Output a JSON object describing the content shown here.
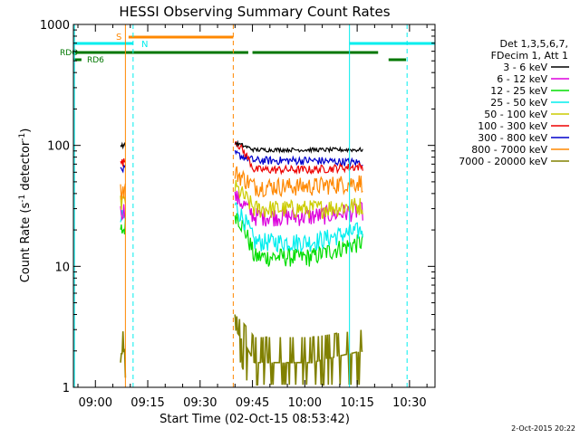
{
  "chart_data": {
    "type": "line",
    "title": "HESSI Observing Summary Count Rates",
    "xlabel": "Start Time (02-Oct-15 08:53:42)",
    "ylabel_main": "Count Rate (s",
    "ylabel_sup1": "-1",
    "ylabel_mid": " detector",
    "ylabel_sup2": "-1",
    "ylabel_end": ")",
    "yscale": "log",
    "ylim": [
      1,
      1000
    ],
    "xlim_minutes": [
      -6.3,
      97.3
    ],
    "x_tick_labels": [
      "09:00",
      "09:15",
      "09:30",
      "09:45",
      "10:00",
      "10:15",
      "10:30"
    ],
    "x_tick_minutes": [
      0,
      15,
      30,
      45,
      60,
      75,
      90
    ],
    "y_tick_labels": [
      "1",
      "10",
      "100",
      "1000"
    ],
    "y_tick_values": [
      1,
      10,
      100,
      1000
    ],
    "legend": {
      "header_lines": [
        "Det 1,3,5,6,7,",
        "FDecim 1, Att 1"
      ],
      "entries": [
        {
          "label": "3 - 6 keV",
          "color": "#000000"
        },
        {
          "label": "6 - 12 keV",
          "color": "#dd00dd"
        },
        {
          "label": "12 - 25 keV",
          "color": "#00dd00"
        },
        {
          "label": "25 - 50 keV",
          "color": "#00eeee"
        },
        {
          "label": "50 - 100 keV",
          "color": "#cccc00"
        },
        {
          "label": "100 - 300 keV",
          "color": "#ee0000"
        },
        {
          "label": "300 - 800 keV",
          "color": "#0000cc"
        },
        {
          "label": "800 - 7000 keV",
          "color": "#ff8800"
        },
        {
          "label": "7000 - 20000 keV",
          "color": "#808000"
        }
      ]
    },
    "flag_labels": {
      "saa": "S",
      "night": "N",
      "rdo": "RDO",
      "rd6": "RD6"
    },
    "saa_interval_minutes": [
      9.5,
      39.5
    ],
    "night_interval_minutes": [
      [
        -6.3,
        10.8
      ],
      [
        72.8,
        97.3
      ]
    ],
    "rdo_intervals_minutes": [
      [
        -6.3,
        43.8
      ],
      [
        45.0,
        81.0
      ]
    ],
    "rd6_intervals_minutes": [
      [
        -6.3,
        -4.0
      ],
      [
        84.0,
        89.0
      ]
    ],
    "vertical_lines_minutes": [
      {
        "x": -6.0,
        "color": "#00eeee",
        "style": "solid"
      },
      {
        "x": 8.6,
        "color": "#ff8800",
        "style": "solid"
      },
      {
        "x": 10.8,
        "color": "#00eeee",
        "style": "dashed"
      },
      {
        "x": 39.5,
        "color": "#ff8800",
        "style": "dashed"
      },
      {
        "x": 72.8,
        "color": "#00eeee",
        "style": "solid"
      },
      {
        "x": 89.3,
        "color": "#00eeee",
        "style": "dashed"
      }
    ],
    "segments": [
      {
        "start_minute": 7.2,
        "end_minute": 8.6
      },
      {
        "start_minute": 40.0,
        "end_minute": 76.6
      }
    ],
    "series": [
      {
        "name": "3 - 6 keV",
        "color": "#000000",
        "levels": [
          {
            "segment": 0,
            "start": 100,
            "end": 100
          },
          {
            "segment": 1,
            "start": 105,
            "mid": 92,
            "end": 92
          }
        ]
      },
      {
        "name": "6 - 12 keV",
        "color": "#dd00dd",
        "levels": [
          {
            "segment": 0,
            "start": 28,
            "end": 30
          },
          {
            "segment": 1,
            "start": 38,
            "mid": 26,
            "end": 29
          }
        ]
      },
      {
        "name": "12 - 25 keV",
        "color": "#00dd00",
        "levels": [
          {
            "segment": 0,
            "start": 18,
            "end": 22
          },
          {
            "segment": 1,
            "start": 28,
            "mid": 12,
            "end": 16
          }
        ]
      },
      {
        "name": "25 - 50 keV",
        "color": "#00eeee",
        "levels": [
          {
            "segment": 0,
            "start": 24,
            "end": 26
          },
          {
            "segment": 1,
            "start": 32,
            "mid": 16,
            "end": 20
          }
        ]
      },
      {
        "name": "50 - 100 keV",
        "color": "#cccc00",
        "levels": [
          {
            "segment": 0,
            "start": 33,
            "end": 35
          },
          {
            "segment": 1,
            "start": 45,
            "mid": 30,
            "end": 32
          }
        ]
      },
      {
        "name": "100 - 300 keV",
        "color": "#ee0000",
        "levels": [
          {
            "segment": 0,
            "start": 70,
            "end": 75
          },
          {
            "segment": 1,
            "start": 110,
            "mid": 63,
            "end": 67
          }
        ]
      },
      {
        "name": "300 - 800 keV",
        "color": "#0000cc",
        "levels": [
          {
            "segment": 0,
            "start": 62,
            "end": 64
          },
          {
            "segment": 1,
            "start": 85,
            "mid": 75,
            "end": 72
          }
        ]
      },
      {
        "name": "800 - 7000 keV",
        "color": "#ff8800",
        "levels": [
          {
            "segment": 0,
            "start": 42,
            "end": 44
          },
          {
            "segment": 1,
            "start": 60,
            "mid": 46,
            "end": 50
          }
        ]
      },
      {
        "name": "7000 - 20000 keV",
        "color": "#808000",
        "levels": [
          {
            "segment": 0,
            "start": 1.6,
            "end": 2.2
          },
          {
            "segment": 1,
            "start": 3.0,
            "mid": 1.6,
            "end": 2.0
          }
        ]
      }
    ],
    "grid": false,
    "legend_placement": "right"
  },
  "footer_timestamp": "2-Oct-2015 20:22"
}
